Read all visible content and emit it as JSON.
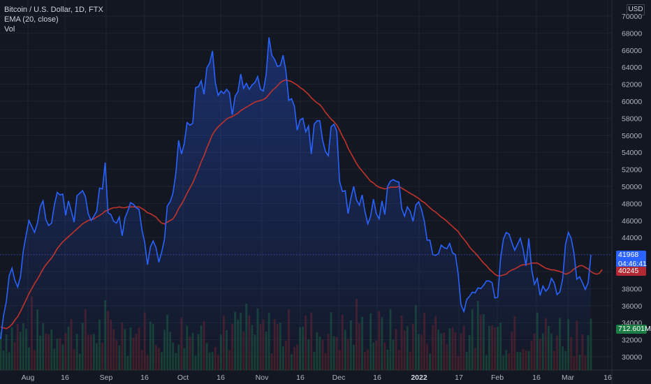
{
  "legend": {
    "symbol": "Bitcoin / U.S. Dollar, 1D, FTX",
    "ema": "EMA (20, close)",
    "vol": "Vol"
  },
  "currency": "USD",
  "tags": {
    "last_price": "41968",
    "countdown": "04:46:41",
    "ema_value": "40245",
    "volume": "712.601M"
  },
  "colors": {
    "background": "#131722",
    "price_line": "#2962ff",
    "ema_line": "#c2332c",
    "vol_up": "#1b5e3b",
    "vol_down": "#6b2026"
  },
  "chart_data": {
    "type": "area",
    "y_ticks": [
      30000,
      32000,
      34000,
      36000,
      38000,
      40000,
      42000,
      44000,
      46000,
      48000,
      50000,
      52000,
      54000,
      56000,
      58000,
      60000,
      62000,
      64000,
      66000,
      68000,
      70000
    ],
    "x_ticks": [
      "Aug",
      "16",
      "Sep",
      "16",
      "Oct",
      "16",
      "Nov",
      "16",
      "Dec",
      "16",
      "2022",
      "17",
      "Feb",
      "16",
      "Mar",
      "16"
    ],
    "ylim": [
      29000,
      71000
    ],
    "series": [
      {
        "values": [
          32100,
          34800,
          36500,
          39500,
          40400,
          39000,
          38200,
          39400,
          42400,
          44300,
          46000,
          45300,
          44600,
          45700,
          47600,
          48300,
          46100,
          45400,
          45700,
          47800,
          49300,
          49000,
          49100,
          46600,
          48300,
          47100,
          45800,
          48900,
          49200,
          49500,
          48800,
          46800,
          46000,
          46500,
          47100,
          49800,
          49700,
          52800,
          46900,
          46700,
          45900,
          45700,
          46400,
          44200,
          46300,
          47100,
          48100,
          47900,
          47500,
          47300,
          44900,
          43400,
          40800,
          42900,
          43600,
          42800,
          41100,
          42300,
          43800,
          47700,
          48200,
          49200,
          51500,
          55400,
          53800,
          55000,
          57500,
          57200,
          57400,
          61600,
          61700,
          62400,
          60800,
          63900,
          64500,
          65900,
          62200,
          60700,
          61200,
          60900,
          61400,
          61000,
          58400,
          60600,
          61100,
          63200,
          61500,
          62100,
          61400,
          61900,
          62200,
          62900,
          61400,
          61200,
          63100,
          67500,
          65400,
          64900,
          64100,
          64200,
          65400,
          63600,
          60100,
          60300,
          59400,
          56600,
          57800,
          58000,
          56400,
          57100,
          53800,
          57300,
          57700,
          57700,
          55400,
          54100,
          53600,
          57000,
          57300,
          56500,
          50600,
          49400,
          49500,
          46800,
          48600,
          50000,
          48400,
          47800,
          49000,
          47000,
          45600,
          46500,
          48500,
          46800,
          46200,
          48300,
          46700,
          50000,
          50600,
          50800,
          50600,
          50500,
          47400,
          46500,
          47600,
          47100,
          45900,
          47800,
          48200,
          47300,
          45900,
          43700,
          43700,
          42000,
          41900,
          42100,
          43100,
          42800,
          42700,
          43300,
          42200,
          42000,
          39700,
          36100,
          35300,
          36700,
          37100,
          37600,
          37500,
          38100,
          38000,
          38400,
          38900,
          38900,
          38700,
          36900,
          37000,
          41500,
          43800,
          44600,
          44400,
          43400,
          42500,
          43200,
          43900,
          42600,
          40700,
          43900,
          40300,
          38500,
          39200,
          37200,
          38300,
          37700,
          38100,
          39200,
          38700,
          37300,
          37600,
          39200,
          43200,
          44600,
          43900,
          42200,
          39100,
          39400,
          38700,
          37900,
          38700,
          41968
        ]
      },
      {
        "values": [
          33500,
          33400,
          33300,
          33500,
          33800,
          34300,
          34700,
          35300,
          36000,
          36700,
          37400,
          38000,
          38600,
          39100,
          39700,
          40300,
          40800,
          41200,
          41600,
          42100,
          42700,
          43100,
          43500,
          43800,
          44100,
          44400,
          44700,
          45000,
          45300,
          45600,
          45800,
          46000,
          46100,
          46200,
          46400,
          46600,
          46800,
          47100,
          47200,
          47400,
          47500,
          47500,
          47600,
          47500,
          47500,
          47600,
          47600,
          47600,
          47600,
          47600,
          47400,
          47200,
          46900,
          46800,
          46600,
          46400,
          46000,
          45700,
          45600,
          45800,
          46000,
          46200,
          46700,
          47400,
          47900,
          48500,
          49200,
          49800,
          50400,
          51200,
          52000,
          52900,
          53600,
          54500,
          55300,
          56100,
          56600,
          57000,
          57300,
          57600,
          57900,
          58100,
          58200,
          58400,
          58600,
          58900,
          59100,
          59300,
          59500,
          59700,
          59900,
          60000,
          60100,
          60200,
          60400,
          60800,
          61200,
          61500,
          61800,
          62200,
          62400,
          62500,
          62400,
          62300,
          62100,
          61900,
          61600,
          61400,
          61100,
          60800,
          60400,
          60100,
          59800,
          59600,
          59200,
          58700,
          58300,
          57900,
          57600,
          57200,
          56600,
          55900,
          55300,
          54500,
          53900,
          53300,
          52700,
          52200,
          51800,
          51400,
          51000,
          50600,
          50400,
          50100,
          49900,
          49800,
          49700,
          49800,
          49900,
          49900,
          49900,
          50000,
          49800,
          49600,
          49400,
          49200,
          49000,
          48800,
          48600,
          48300,
          48100,
          47800,
          47500,
          47200,
          47000,
          46700,
          46400,
          46200,
          45900,
          45600,
          45300,
          45000,
          44700,
          44200,
          43800,
          43400,
          42900,
          42500,
          42200,
          41800,
          41400,
          41000,
          40700,
          40300,
          40000,
          39700,
          39500,
          39500,
          39600,
          39700,
          40000,
          40200,
          40300,
          40500,
          40700,
          40800,
          40800,
          40900,
          41000,
          41000,
          41000,
          40800,
          40600,
          40400,
          40300,
          40200,
          40200,
          40100,
          40000,
          39900,
          39700,
          39800,
          40000,
          40300,
          40500,
          40700,
          40700,
          40500,
          40300,
          40000,
          39800,
          39700,
          39800,
          40245
        ]
      }
    ]
  }
}
